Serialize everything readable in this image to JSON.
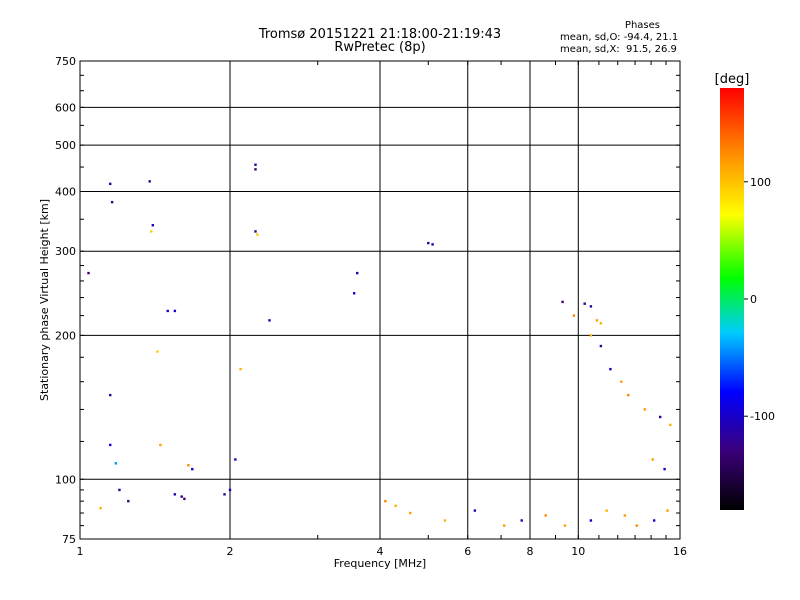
{
  "header": {
    "title": "Tromsø 20151221 21:18:00-21:19:43",
    "subtitle": "RwPretec (8p)"
  },
  "phase_box": {
    "heading": "Phases",
    "line_o": "mean, sd,O: -94.4, 21.1",
    "line_x": "mean, sd,X:  91.5, 26.9"
  },
  "chart_data": {
    "type": "scatter",
    "title": "Tromsø 20151221 21:18:00-21:19:43",
    "subtitle": "RwPretec (8p)",
    "xlabel": "Frequency [MHz]",
    "ylabel": "Stationary phase Virtual Height [km]",
    "x_scale": "log",
    "y_scale": "log",
    "xlim": [
      1,
      16
    ],
    "ylim": [
      75,
      750
    ],
    "x_ticks": [
      1,
      2,
      4,
      6,
      8,
      10,
      16
    ],
    "y_ticks": [
      75,
      100,
      200,
      300,
      400,
      500,
      600,
      750
    ],
    "grid": true,
    "colorbar": {
      "label": "[deg]",
      "range": [
        -180,
        180
      ],
      "ticks": [
        100,
        0,
        -100
      ],
      "colors": [
        "#000000",
        "#3a007a",
        "#0000ff",
        "#00ccff",
        "#00ff00",
        "#ffff00",
        "#ff8800",
        "#ff0000"
      ]
    },
    "series": [
      {
        "points": [
          [
            1.15,
            415,
            -110
          ],
          [
            1.16,
            380,
            -120
          ],
          [
            1.38,
            420,
            -115
          ],
          [
            1.4,
            340,
            -110
          ],
          [
            1.39,
            330,
            100
          ],
          [
            1.04,
            270,
            -130
          ],
          [
            1.5,
            225,
            -100
          ],
          [
            1.55,
            225,
            -95
          ],
          [
            1.15,
            150,
            -120
          ],
          [
            1.15,
            118,
            -90
          ],
          [
            1.18,
            108,
            -40
          ],
          [
            1.2,
            95,
            -120
          ],
          [
            1.25,
            90,
            -130
          ],
          [
            1.43,
            185,
            100
          ],
          [
            1.45,
            118,
            120
          ],
          [
            1.55,
            93,
            -110
          ],
          [
            1.6,
            92,
            -120
          ],
          [
            1.62,
            91,
            -130
          ],
          [
            1.65,
            107,
            130
          ],
          [
            1.68,
            105,
            -100
          ],
          [
            1.1,
            87,
            110
          ],
          [
            1.95,
            93,
            -120
          ],
          [
            2.0,
            95,
            -100
          ],
          [
            2.05,
            110,
            -110
          ],
          [
            2.25,
            455,
            -120
          ],
          [
            2.25,
            445,
            -130
          ],
          [
            2.25,
            330,
            -120
          ],
          [
            2.27,
            325,
            100
          ],
          [
            2.1,
            170,
            110
          ],
          [
            2.4,
            215,
            -100
          ],
          [
            3.6,
            270,
            -110
          ],
          [
            3.55,
            245,
            -100
          ],
          [
            5.0,
            312,
            -120
          ],
          [
            5.1,
            310,
            -110
          ],
          [
            9.3,
            235,
            -130
          ],
          [
            10.3,
            233,
            -120
          ],
          [
            10.6,
            230,
            -110
          ],
          [
            10.9,
            215,
            120
          ],
          [
            11.1,
            212,
            110
          ],
          [
            9.8,
            220,
            130
          ],
          [
            4.1,
            90,
            130
          ],
          [
            4.3,
            88,
            110
          ],
          [
            4.6,
            85,
            120
          ],
          [
            5.4,
            82,
            110
          ],
          [
            6.2,
            86,
            -100
          ],
          [
            7.1,
            80,
            120
          ],
          [
            7.7,
            82,
            -110
          ],
          [
            8.6,
            84,
            130
          ],
          [
            9.4,
            80,
            120
          ],
          [
            10.6,
            82,
            -90
          ],
          [
            11.4,
            86,
            110
          ],
          [
            12.4,
            84,
            120
          ],
          [
            13.1,
            80,
            130
          ],
          [
            14.2,
            82,
            -100
          ],
          [
            15.1,
            86,
            120
          ],
          [
            13.6,
            140,
            120
          ],
          [
            14.6,
            135,
            -110
          ],
          [
            15.3,
            130,
            110
          ],
          [
            12.2,
            160,
            120
          ],
          [
            11.6,
            170,
            -100
          ],
          [
            11.1,
            190,
            -120
          ],
          [
            10.6,
            200,
            110
          ],
          [
            12.6,
            150,
            130
          ],
          [
            14.1,
            110,
            120
          ],
          [
            14.9,
            105,
            -100
          ]
        ]
      }
    ]
  }
}
